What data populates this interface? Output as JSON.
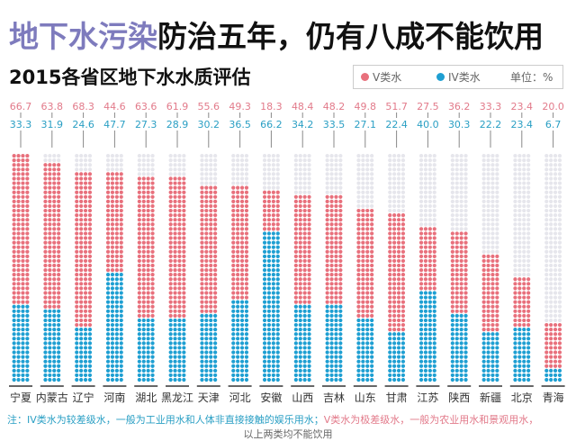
{
  "title": {
    "highlight": "地下水污染",
    "rest": "防治五年，仍有八成不能饮用"
  },
  "subtitle": "2015各省区地下水水质评估",
  "legend": {
    "v_label": "V类水",
    "iv_label": "IV类水",
    "unit": "单位：%"
  },
  "colors": {
    "v": "#e8707c",
    "iv": "#1e9fd2",
    "empty": "#e6e6ec",
    "title_accent": "#7e7bbd",
    "v_text": "#e27a8a",
    "iv_text": "#2a9fc4"
  },
  "note": {
    "prefix": "注：",
    "iv_text": "IV类水为较差级水，一般为工业用水和人体非直接接触的娱乐用水；",
    "v_text": "V类水为极差级水，一般为农业用水和景观用水，",
    "line2": "以上两类均不能饮用"
  },
  "chart_data": {
    "type": "bar",
    "stacked": true,
    "title": "2015各省区地下水水质评估",
    "unit": "%",
    "ylim": [
      0,
      100
    ],
    "legend_position": "top-right",
    "categories": [
      "宁夏",
      "内蒙古",
      "辽宁",
      "河南",
      "湖北",
      "黑龙江",
      "天津",
      "河北",
      "安徽",
      "山西",
      "吉林",
      "山东",
      "甘肃",
      "江苏",
      "陕西",
      "新疆",
      "北京",
      "青海"
    ],
    "series": [
      {
        "name": "V类水",
        "values": [
          66.7,
          63.8,
          68.3,
          44.6,
          63.6,
          61.9,
          55.6,
          49.3,
          18.3,
          48.4,
          48.2,
          49.8,
          51.7,
          27.5,
          36.2,
          33.3,
          23.4,
          20.0
        ]
      },
      {
        "name": "IV类水",
        "values": [
          33.3,
          31.9,
          24.6,
          47.7,
          27.3,
          28.9,
          30.2,
          36.5,
          66.2,
          34.2,
          33.5,
          27.1,
          22.4,
          40.0,
          30.3,
          22.2,
          23.4,
          6.7
        ]
      }
    ]
  }
}
